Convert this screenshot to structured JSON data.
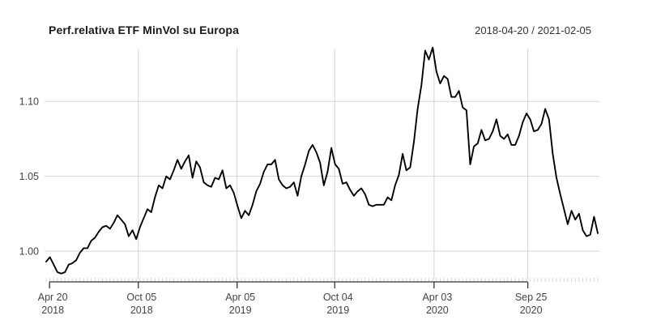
{
  "chart_data": {
    "type": "line",
    "title": "Perf.relativa ETF MinVol su Europa",
    "period_label": "2018-04-20 / 2021-02-05",
    "grid": true,
    "legend": "none",
    "ylim": [
      0.9795,
      1.138
    ],
    "y_ticks": [
      {
        "label": "1.00",
        "value": 1.0
      },
      {
        "label": "1.05",
        "value": 1.05
      },
      {
        "label": "1.10",
        "value": 1.1
      }
    ],
    "x_ticks": [
      {
        "line1": "Apr 20",
        "line2": "2018",
        "frac": 0.009
      },
      {
        "line1": "Oct 05",
        "line2": "2018",
        "frac": 0.169
      },
      {
        "line1": "Apr 05",
        "line2": "2019",
        "frac": 0.347
      },
      {
        "line1": "Oct 04",
        "line2": "2019",
        "frac": 0.523
      },
      {
        "line1": "Apr 03",
        "line2": "2020",
        "frac": 0.702
      },
      {
        "line1": "Sep 25",
        "line2": "2020",
        "frac": 0.871
      }
    ],
    "colors": {
      "line": "#000000",
      "grid": "#d4d4d4",
      "minor_tick": "#d8d8d8",
      "axis": "#333333",
      "text": "#444444",
      "background": "#ffffff"
    },
    "series": [
      {
        "name": "Perf.relativa ETF MinVol su Europa",
        "frequency": "weekly",
        "start": "2018-04-20",
        "end": "2021-02-05",
        "values": [
          0.993,
          0.996,
          0.991,
          0.986,
          0.985,
          0.986,
          0.991,
          0.992,
          0.994,
          0.999,
          1.002,
          1.002,
          1.007,
          1.009,
          1.013,
          1.016,
          1.017,
          1.015,
          1.019,
          1.024,
          1.021,
          1.018,
          1.01,
          1.014,
          1.008,
          1.016,
          1.022,
          1.028,
          1.026,
          1.036,
          1.044,
          1.042,
          1.05,
          1.048,
          1.054,
          1.061,
          1.055,
          1.06,
          1.064,
          1.049,
          1.06,
          1.056,
          1.046,
          1.044,
          1.043,
          1.049,
          1.048,
          1.054,
          1.042,
          1.044,
          1.039,
          1.03,
          1.022,
          1.027,
          1.024,
          1.031,
          1.04,
          1.045,
          1.053,
          1.058,
          1.058,
          1.061,
          1.048,
          1.044,
          1.042,
          1.043,
          1.046,
          1.037,
          1.05,
          1.058,
          1.067,
          1.071,
          1.066,
          1.059,
          1.044,
          1.053,
          1.069,
          1.058,
          1.055,
          1.045,
          1.046,
          1.041,
          1.037,
          1.04,
          1.042,
          1.038,
          1.031,
          1.03,
          1.031,
          1.031,
          1.031,
          1.036,
          1.034,
          1.044,
          1.051,
          1.065,
          1.054,
          1.056,
          1.073,
          1.095,
          1.111,
          1.134,
          1.128,
          1.136,
          1.12,
          1.112,
          1.117,
          1.115,
          1.103,
          1.103,
          1.107,
          1.096,
          1.094,
          1.058,
          1.07,
          1.072,
          1.081,
          1.074,
          1.075,
          1.08,
          1.088,
          1.077,
          1.075,
          1.078,
          1.071,
          1.071,
          1.077,
          1.086,
          1.092,
          1.088,
          1.08,
          1.081,
          1.085,
          1.095,
          1.088,
          1.065,
          1.049,
          1.038,
          1.028,
          1.018,
          1.027,
          1.021,
          1.025,
          1.014,
          1.01,
          1.011,
          1.023,
          1.012
        ]
      }
    ]
  }
}
